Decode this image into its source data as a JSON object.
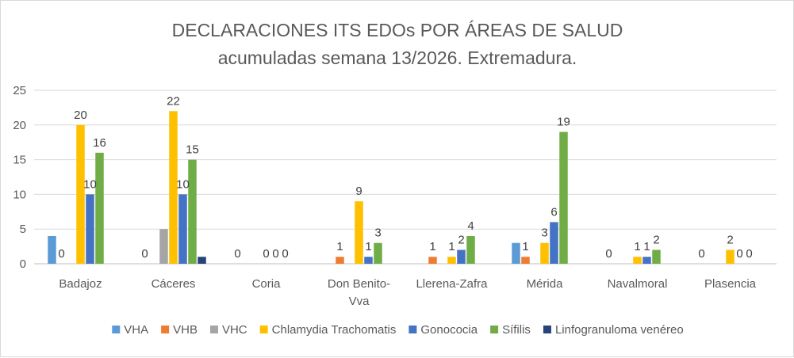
{
  "chart_data": {
    "type": "bar",
    "title": "DECLARACIONES ITS EDOs POR ÁREAS DE SALUD",
    "subtitle": "acumuladas semana 13/2026. Extremadura.",
    "xlabel": "",
    "ylabel": "",
    "ylim": [
      0,
      25
    ],
    "yticks": [
      "0",
      "5",
      "10",
      "15",
      "20",
      "25"
    ],
    "grid": true,
    "legend_position": "bottom",
    "categories": [
      [
        "Badajoz"
      ],
      [
        "Cáceres"
      ],
      [
        "Coria"
      ],
      [
        "Don Benito-",
        "Vva"
      ],
      [
        "Llerena-Zafra"
      ],
      [
        "Mérida"
      ],
      [
        "Navalmoral"
      ],
      [
        "Plasencia"
      ]
    ],
    "series": [
      {
        "name": "VHA",
        "color": "#5B9BD5",
        "values": [
          4,
          0,
          0,
          0,
          0,
          3,
          0,
          0
        ],
        "labels": [
          null,
          "0",
          "0",
          null,
          null,
          null,
          "0",
          "0"
        ]
      },
      {
        "name": "VHB",
        "color": "#ED7D31",
        "values": [
          0,
          0,
          0,
          1,
          1,
          1,
          0,
          0
        ],
        "labels": [
          "0",
          null,
          null,
          "1",
          "1",
          "1",
          null,
          null
        ]
      },
      {
        "name": "VHC",
        "color": "#A5A5A5",
        "values": [
          0,
          5,
          0,
          0,
          0,
          0,
          0,
          0
        ],
        "labels": [
          null,
          null,
          null,
          null,
          null,
          null,
          null,
          null
        ]
      },
      {
        "name": "Chlamydia Trachomatis",
        "color": "#FFC000",
        "values": [
          20,
          22,
          0,
          9,
          1,
          3,
          1,
          2
        ],
        "labels": [
          "20",
          "22",
          "0",
          "9",
          "1",
          "3",
          "1",
          "2"
        ]
      },
      {
        "name": "Gonococia",
        "color": "#4472C4",
        "values": [
          10,
          10,
          0,
          1,
          2,
          6,
          1,
          0
        ],
        "labels": [
          "10",
          "10",
          "0",
          "1",
          "2",
          "6",
          "1",
          "0"
        ]
      },
      {
        "name": "Sífilis",
        "color": "#70AD47",
        "values": [
          16,
          15,
          0,
          3,
          4,
          19,
          2,
          0
        ],
        "labels": [
          "16",
          "15",
          "0",
          "3",
          "4",
          "19",
          "2",
          "0"
        ]
      },
      {
        "name": "Linfogranuloma venéreo",
        "color": "#264478",
        "values": [
          0,
          1,
          0,
          0,
          0,
          0,
          0,
          0
        ],
        "labels": [
          null,
          null,
          null,
          null,
          null,
          null,
          null,
          null
        ]
      }
    ]
  }
}
